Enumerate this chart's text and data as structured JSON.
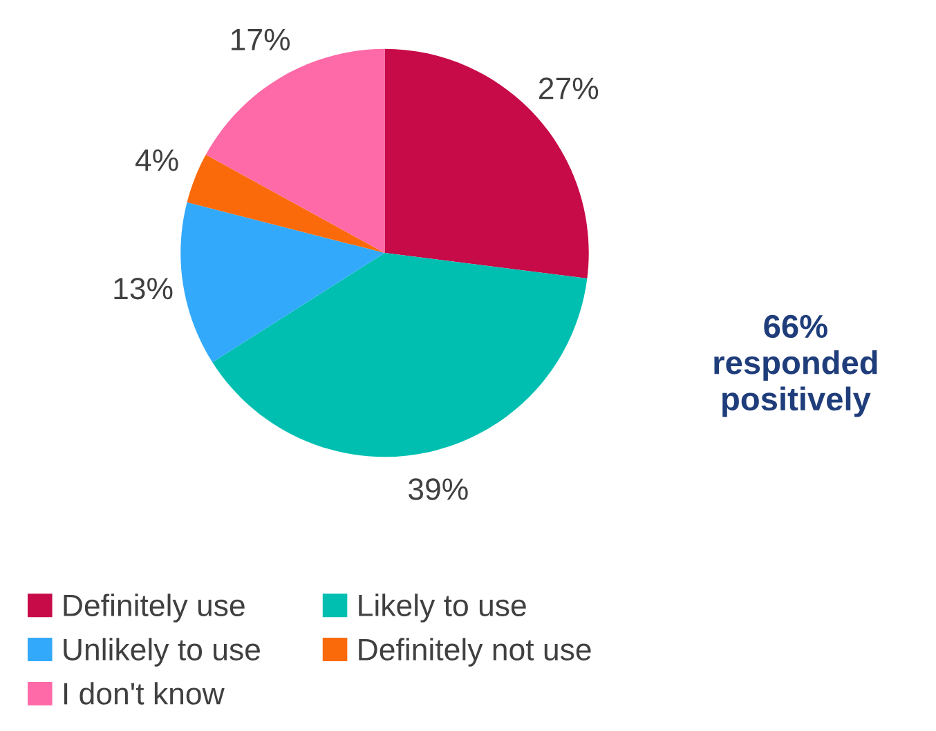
{
  "chart_data": {
    "type": "pie",
    "categories": [
      "Definitely use",
      "Likely to use",
      "Unlikely to use",
      "Definitely not use",
      "I don't know"
    ],
    "values": [
      27,
      39,
      13,
      4,
      17
    ],
    "colors": [
      "#c70a48",
      "#00bfb1",
      "#33a9fb",
      "#fb6a0a",
      "#fe6aa8"
    ],
    "value_labels": [
      "27%",
      "39%",
      "13%",
      "4%",
      "17%"
    ],
    "annotations": [
      "66%\nresponded\npositively"
    ],
    "legend": "bottom"
  }
}
